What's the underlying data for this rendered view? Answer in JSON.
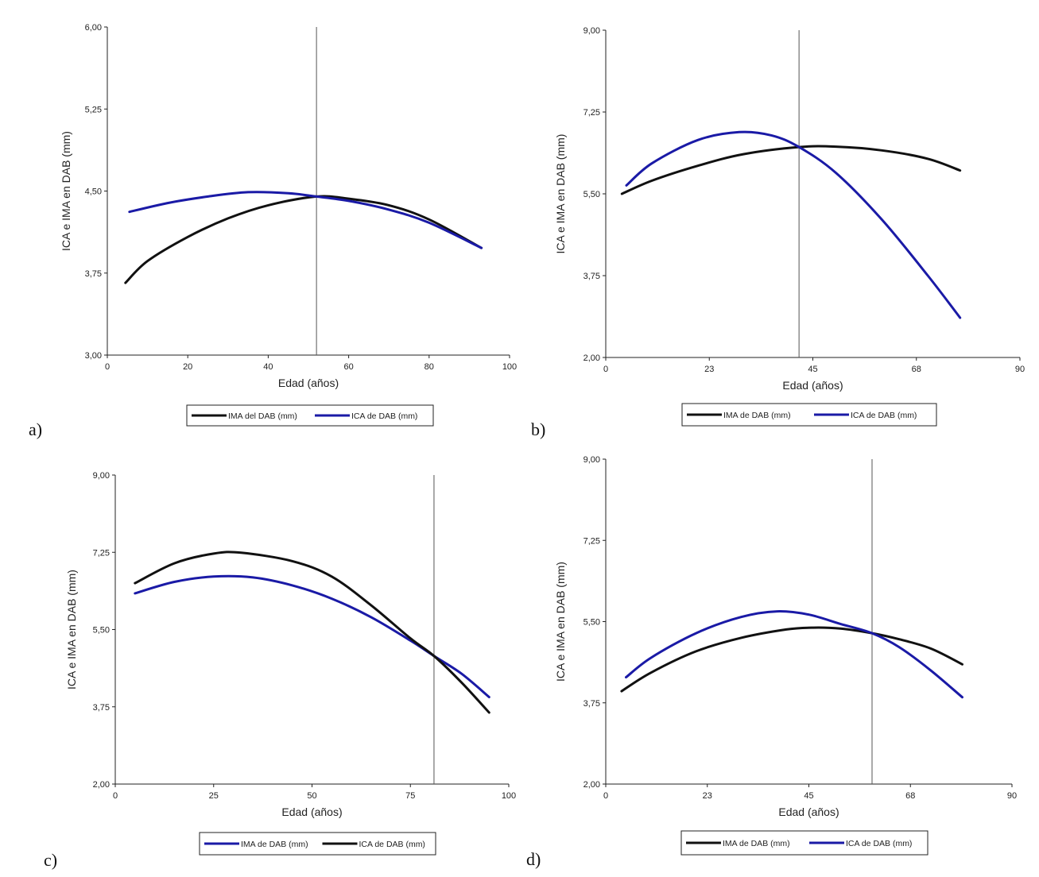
{
  "chart_data": [
    {
      "type": "line",
      "panel_label": "a)",
      "xlabel": "Edad (años)",
      "ylabel": "ICA e IMA en DAB (mm)",
      "xlim": [
        0,
        100
      ],
      "ylim": [
        3.0,
        6.0
      ],
      "x_ticks": [
        0,
        20,
        40,
        60,
        80,
        100
      ],
      "x_tick_labels": [
        "0",
        "20",
        "40",
        "60",
        "80",
        "100"
      ],
      "y_ticks": [
        3.0,
        3.75,
        4.5,
        5.25,
        6.0
      ],
      "y_tick_labels": [
        "3,00",
        "3,75",
        "4,50",
        "5,25",
        "6,00"
      ],
      "vline_x": 52,
      "legend": [
        "IMA del DAB (mm)",
        "ICA de DAB (mm)"
      ],
      "series": [
        {
          "name": "IMA del DAB (mm)",
          "color": "#111111",
          "x": [
            4.5,
            10,
            20,
            30,
            40,
            52,
            60,
            70,
            80,
            93
          ],
          "y": [
            3.66,
            3.86,
            4.08,
            4.25,
            4.37,
            4.45,
            4.43,
            4.37,
            4.24,
            3.98
          ]
        },
        {
          "name": "ICA de DAB (mm)",
          "color": "#1a1aa6",
          "x": [
            5.5,
            15,
            25,
            35,
            45,
            52,
            60,
            70,
            80,
            93
          ],
          "y": [
            4.31,
            4.39,
            4.45,
            4.49,
            4.48,
            4.45,
            4.41,
            4.33,
            4.21,
            3.98
          ]
        }
      ]
    },
    {
      "type": "line",
      "panel_label": "b)",
      "xlabel": "Edad (años)",
      "ylabel": "ICA e IMA en DAB (mm)",
      "xlim": [
        0,
        90
      ],
      "ylim": [
        2.0,
        9.0
      ],
      "x_ticks": [
        0,
        22.5,
        45,
        67.5,
        90
      ],
      "x_tick_labels": [
        "0",
        "23",
        "45",
        "68",
        "90"
      ],
      "y_ticks": [
        2.0,
        3.75,
        5.5,
        7.25,
        9.0
      ],
      "y_tick_labels": [
        "2,00",
        "3,75",
        "5,50",
        "7,25",
        "9,00"
      ],
      "vline_x": 42,
      "legend": [
        "IMA de DAB (mm)",
        "ICA de DAB (mm)"
      ],
      "series": [
        {
          "name": "IMA de DAB (mm)",
          "color": "#111111",
          "x": [
            3.5,
            10,
            20,
            30,
            42,
            50,
            60,
            70,
            77
          ],
          "y": [
            5.5,
            5.78,
            6.1,
            6.35,
            6.5,
            6.51,
            6.43,
            6.25,
            6.0
          ]
        },
        {
          "name": "ICA de DAB (mm)",
          "color": "#1a1aa6",
          "x": [
            4.5,
            10,
            20,
            29,
            36,
            42,
            50,
            60,
            70,
            77
          ],
          "y": [
            5.68,
            6.15,
            6.65,
            6.82,
            6.75,
            6.5,
            5.95,
            4.95,
            3.75,
            2.85
          ]
        }
      ]
    },
    {
      "type": "line",
      "panel_label": "c)",
      "xlabel": "Edad (años)",
      "ylabel": "ICA e IMA en DAB (mm)",
      "xlim": [
        0,
        100
      ],
      "ylim": [
        2.0,
        9.0
      ],
      "x_ticks": [
        0,
        25,
        50,
        75,
        100
      ],
      "x_tick_labels": [
        "0",
        "25",
        "50",
        "75",
        "100"
      ],
      "y_ticks": [
        2.0,
        3.75,
        5.5,
        7.25,
        9.0
      ],
      "y_tick_labels": [
        "2,00",
        "3,75",
        "5,50",
        "7,25",
        "9,00"
      ],
      "vline_x": 81,
      "legend": [
        "IMA de DAB (mm)",
        "ICA de DAB (mm)"
      ],
      "series": [
        {
          "name": "IMA de DAB (mm)",
          "color": "#1a1aa6",
          "x": [
            5,
            15,
            25,
            35,
            45,
            55,
            65,
            75,
            81,
            88,
            95
          ],
          "y": [
            6.32,
            6.58,
            6.7,
            6.68,
            6.5,
            6.2,
            5.78,
            5.25,
            4.9,
            4.5,
            3.97
          ]
        },
        {
          "name": "ICA de DAB (mm)",
          "color": "#111111",
          "x": [
            5,
            15,
            25,
            32,
            45,
            55,
            65,
            75,
            81,
            88,
            95
          ],
          "y": [
            6.55,
            7.0,
            7.22,
            7.24,
            7.05,
            6.7,
            6.05,
            5.3,
            4.9,
            4.3,
            3.62
          ]
        }
      ]
    },
    {
      "type": "line",
      "panel_label": "d)",
      "xlabel": "Edad (años)",
      "ylabel": "ICA e IMA en DAB (mm)",
      "xlim": [
        0,
        90
      ],
      "ylim": [
        2.0,
        9.0
      ],
      "x_ticks": [
        0,
        22.5,
        45,
        67.5,
        90
      ],
      "x_tick_labels": [
        "0",
        "23",
        "45",
        "68",
        "90"
      ],
      "y_ticks": [
        2.0,
        3.75,
        5.5,
        7.25,
        9.0
      ],
      "y_tick_labels": [
        "2,00",
        "3,75",
        "5,50",
        "7,25",
        "9,00"
      ],
      "vline_x": 59,
      "legend": [
        "IMA de DAB (mm)",
        "ICA de DAB (mm)"
      ],
      "series": [
        {
          "name": "IMA de DAB (mm)",
          "color": "#111111",
          "x": [
            3.5,
            10,
            20,
            30,
            40,
            46,
            52,
            59,
            65,
            72,
            79
          ],
          "y": [
            4.0,
            4.4,
            4.86,
            5.15,
            5.33,
            5.37,
            5.35,
            5.25,
            5.12,
            4.92,
            4.58
          ]
        },
        {
          "name": "ICA de DAB (mm)",
          "color": "#1a1aa6",
          "x": [
            4.5,
            10,
            20,
            30,
            38,
            45,
            52,
            59,
            65,
            72,
            79
          ],
          "y": [
            4.3,
            4.72,
            5.25,
            5.6,
            5.72,
            5.65,
            5.45,
            5.25,
            4.95,
            4.45,
            3.87
          ]
        }
      ]
    }
  ]
}
